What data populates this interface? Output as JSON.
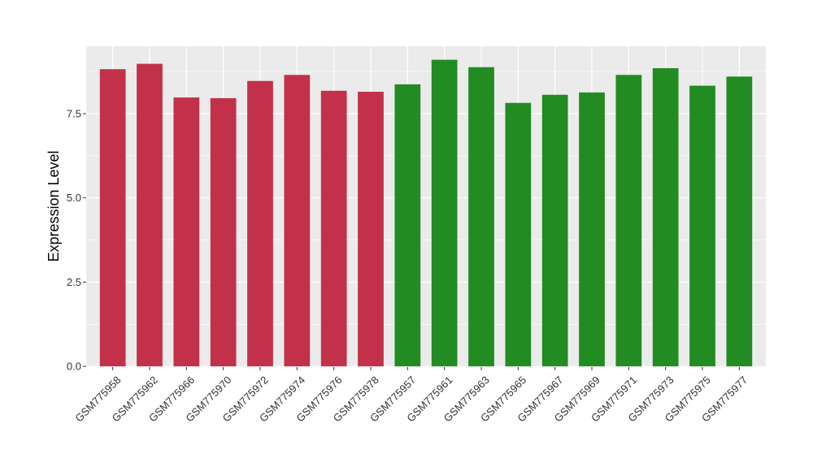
{
  "chart_data": {
    "type": "bar",
    "title": "",
    "xlabel": "",
    "ylabel": "Expression Level",
    "ylim": [
      -0.02,
      9.5
    ],
    "yticks": [
      0.0,
      2.5,
      5.0,
      7.5
    ],
    "ytick_labels": [
      "0.0",
      "2.5",
      "5.0",
      "7.5"
    ],
    "grid": true,
    "legend": "none",
    "categories": [
      "GSM775958",
      "GSM775962",
      "GSM775966",
      "GSM775970",
      "GSM775972",
      "GSM775974",
      "GSM775976",
      "GSM775978",
      "GSM775957",
      "GSM775961",
      "GSM775963",
      "GSM775965",
      "GSM775967",
      "GSM775969",
      "GSM775971",
      "GSM775973",
      "GSM775975",
      "GSM775977"
    ],
    "values": [
      8.82,
      8.98,
      7.98,
      7.96,
      8.47,
      8.65,
      8.18,
      8.15,
      8.37,
      9.1,
      8.88,
      7.82,
      8.06,
      8.13,
      8.65,
      8.85,
      8.33,
      8.6
    ],
    "colors": [
      "#C3304A",
      "#C3304A",
      "#C3304A",
      "#C3304A",
      "#C3304A",
      "#C3304A",
      "#C3304A",
      "#C3304A",
      "#228B22",
      "#228B22",
      "#228B22",
      "#228B22",
      "#228B22",
      "#228B22",
      "#228B22",
      "#228B22",
      "#228B22",
      "#228B22"
    ],
    "panel_background": "#EBEBEB",
    "grid_color": "#FFFFFF"
  }
}
